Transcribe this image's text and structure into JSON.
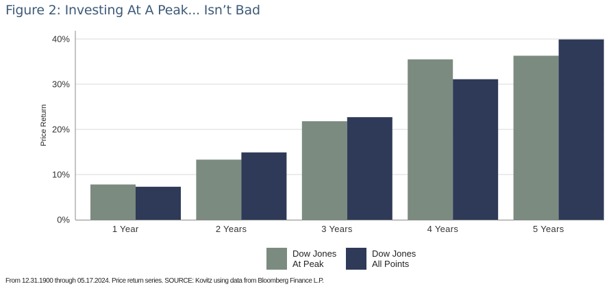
{
  "title": "Figure 2: Investing At A Peak... Isn’t Bad",
  "source_note": "From 12.31.1900 through 05.17.2024. Price return series. SOURCE: Kovitz using data from Bloomberg Finance L.P.",
  "chart_data": {
    "type": "bar",
    "categories": [
      "1 Year",
      "2 Years",
      "3 Years",
      "4 Years",
      "5 Years"
    ],
    "series": [
      {
        "name": "Dow Jones At Peak",
        "legend_lines": [
          "Dow Jones",
          "At Peak"
        ],
        "color": "#7b8b80",
        "values": [
          7.8,
          13.3,
          21.8,
          35.5,
          36.3
        ]
      },
      {
        "name": "Dow Jones All Points",
        "legend_lines": [
          "Dow Jones",
          "All Points"
        ],
        "color": "#2e3a57",
        "values": [
          7.3,
          14.9,
          22.7,
          31.1,
          39.9
        ]
      }
    ],
    "ylabel": "Price Return",
    "xlabel": "",
    "ylim": [
      0,
      40
    ],
    "yticks": [
      0,
      10,
      20,
      30,
      40
    ],
    "ytick_labels": [
      "0%",
      "10%",
      "20%",
      "30%",
      "40%"
    ],
    "grid": true,
    "legend_position": "bottom-center"
  }
}
